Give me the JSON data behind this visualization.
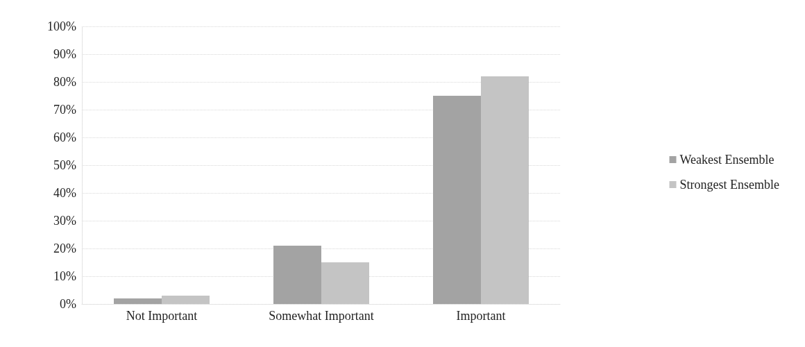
{
  "chart_data": {
    "type": "bar",
    "categories": [
      "Not Important",
      "Somewhat Important",
      "Important"
    ],
    "series": [
      {
        "name": "Weakest Ensemble",
        "color": "#a3a3a3",
        "values": [
          2,
          21,
          75
        ]
      },
      {
        "name": "Strongest Ensemble",
        "color": "#c4c4c4",
        "values": [
          3,
          15,
          82
        ]
      }
    ],
    "ylim": [
      0,
      100
    ],
    "yticks": [
      {
        "value": 0,
        "label": "0%"
      },
      {
        "value": 10,
        "label": "10%"
      },
      {
        "value": 20,
        "label": "20%"
      },
      {
        "value": 30,
        "label": "30%"
      },
      {
        "value": 40,
        "label": "40%"
      },
      {
        "value": 50,
        "label": "50%"
      },
      {
        "value": 60,
        "label": "60%"
      },
      {
        "value": 70,
        "label": "70%"
      },
      {
        "value": 80,
        "label": "80%"
      },
      {
        "value": 90,
        "label": "90%"
      },
      {
        "value": 100,
        "label": "100%"
      }
    ],
    "grid": "y",
    "legend": "right"
  }
}
